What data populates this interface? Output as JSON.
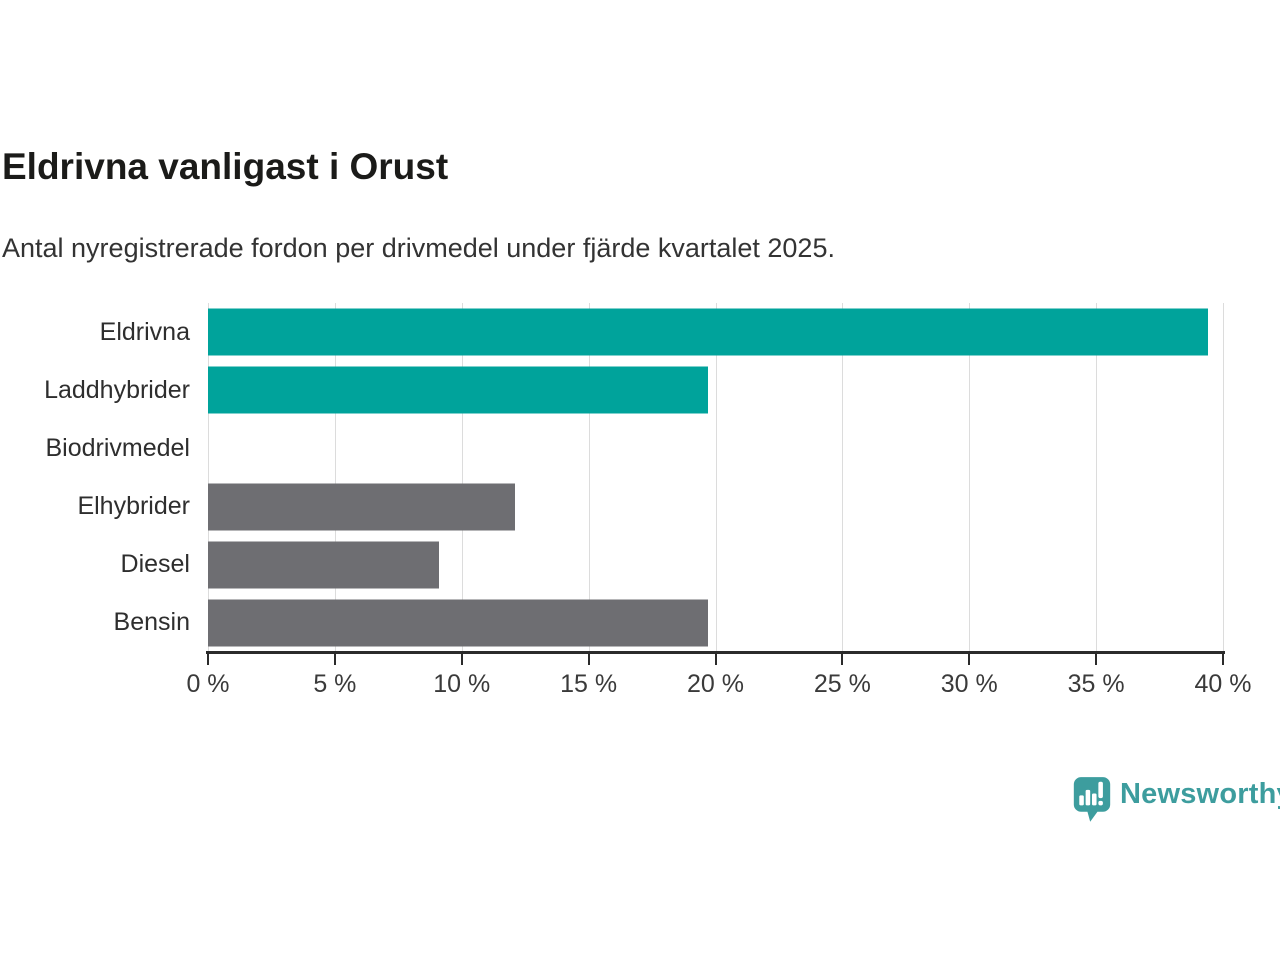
{
  "header": {
    "title": "Eldrivna vanligast i Orust",
    "subtitle": "Antal nyregistrerade fordon per drivmedel under fjärde kvartalet 2025."
  },
  "chart_data": {
    "type": "bar",
    "orientation": "horizontal",
    "title": "Eldrivna vanligast i Orust",
    "subtitle": "Antal nyregistrerade fordon per drivmedel under fjärde kvartalet 2025.",
    "categories": [
      "Eldrivna",
      "Laddhybrider",
      "Biodrivmedel",
      "Elhybrider",
      "Diesel",
      "Bensin"
    ],
    "values": [
      39.4,
      19.7,
      0,
      12.1,
      9.1,
      19.7
    ],
    "value_unit": "%",
    "bar_colors": [
      "#00a39b",
      "#00a39b",
      "#6e6e72",
      "#6e6e72",
      "#6e6e72",
      "#6e6e72"
    ],
    "highlight_color": "#00a39b",
    "default_color": "#6e6e72",
    "xlabel": "",
    "ylabel": "",
    "xlim": [
      0,
      40
    ],
    "xticks": [
      0,
      5,
      10,
      15,
      20,
      25,
      30,
      35,
      40
    ],
    "xtick_labels": [
      "0 %",
      "5 %",
      "10 %",
      "15 %",
      "20 %",
      "25 %",
      "30 %",
      "35 %",
      "40 %"
    ],
    "grid": true,
    "gridline_color": "#dcdcdc",
    "axis_color": "#2b2b2b",
    "legend": "none"
  },
  "branding": {
    "logo_text": "Newsworthy",
    "logo_color": "#3d9d9e",
    "logo_icon": "bar-chart-speech-bubble"
  },
  "colors": {
    "background": "#ffffff",
    "title_text": "#1b1b19",
    "subtitle_text": "#333333",
    "category_text": "#2e2e2e",
    "tick_text": "#3a3a3a"
  }
}
